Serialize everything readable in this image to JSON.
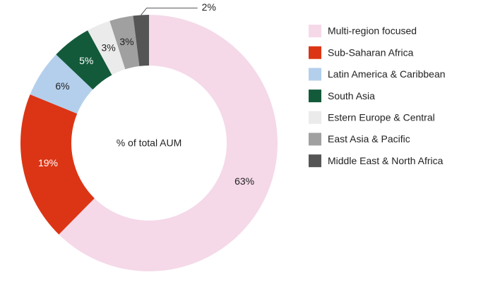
{
  "chart_data": {
    "type": "pie",
    "center_label": "% of total AUM",
    "categories": [
      "Multi-region focused",
      "Sub-Saharan Africa",
      "Latin America & Caribbean",
      "South Asia",
      "Estern Europe & Central",
      "East Asia & Pacific",
      "Middle East & North Africa"
    ],
    "values": [
      63,
      19,
      6,
      5,
      3,
      3,
      2
    ],
    "value_labels": [
      "63%",
      "19%",
      "6%",
      "5%",
      "3%",
      "3%",
      "2%"
    ],
    "colors": [
      "#f5d9e8",
      "#dc3515",
      "#b3cfec",
      "#135a3a",
      "#ebebeb",
      "#a0a0a0",
      "#555555"
    ],
    "legend": "right"
  }
}
